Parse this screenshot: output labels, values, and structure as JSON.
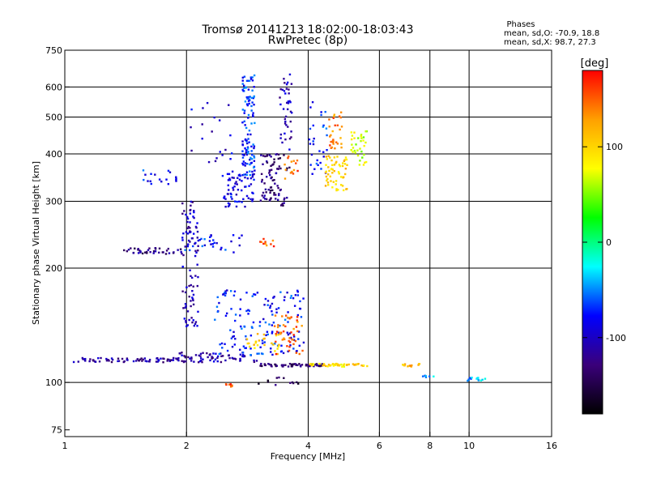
{
  "chart_data": {
    "type": "scatter",
    "title": "Tromsø 20141213 18:02:00-18:03:43",
    "subtitle": "RwPretec (8p)",
    "xlabel": "Frequency [MHz]",
    "ylabel": "Stationary phase Virtual Height [km]",
    "x_scale": "log",
    "y_scale": "log",
    "xlim": [
      1,
      16
    ],
    "ylim": [
      72,
      750
    ],
    "x_ticks": [
      1,
      2,
      4,
      6,
      8,
      10,
      16
    ],
    "y_ticks": [
      75,
      100,
      200,
      300,
      400,
      500,
      600,
      750
    ],
    "x_gridlines": [
      2,
      4,
      6,
      8,
      10
    ],
    "y_gridlines": [
      100,
      200,
      300,
      400,
      500,
      600
    ],
    "grid": true,
    "stats": {
      "title": "Phases",
      "line_o": "mean, sd,O: -70.9, 18.8",
      "line_x": "mean, sd,X:  98.7, 27.3"
    },
    "colorbar": {
      "unit": "[deg]",
      "range": [
        -180,
        180
      ],
      "ticks": [
        100,
        0,
        -100
      ],
      "colors": [
        "#ff0000",
        "#ffa000",
        "#ffff00",
        "#00ff00",
        "#00ffff",
        "#0000ff",
        "#3a007a",
        "#000000"
      ]
    },
    "clusters": [
      {
        "f": [
          1.05,
          1.9
        ],
        "h": [
          113,
          116
        ],
        "n": 70,
        "phase": -115
      },
      {
        "f": [
          1.9,
          3.0
        ],
        "h": [
          113,
          120
        ],
        "n": 70,
        "phase": -110
      },
      {
        "f": [
          3.0,
          4.4
        ],
        "h": [
          110,
          112
        ],
        "n": 60,
        "phase": -135
      },
      {
        "f": [
          4.0,
          5.0
        ],
        "h": [
          110,
          112
        ],
        "n": 35,
        "phase": 95
      },
      {
        "f": [
          5.0,
          5.6
        ],
        "h": [
          110,
          112
        ],
        "n": 12,
        "phase": 105
      },
      {
        "f": [
          6.8,
          7.6
        ],
        "h": [
          110,
          112
        ],
        "n": 12,
        "phase": 120
      },
      {
        "f": [
          7.6,
          8.2
        ],
        "h": [
          103,
          105
        ],
        "n": 6,
        "phase": -45
      },
      {
        "f": [
          9.6,
          11.0
        ],
        "h": [
          101,
          103
        ],
        "n": 14,
        "phase": -45
      },
      {
        "f": [
          2.35,
          3.9
        ],
        "h": [
          118,
          175
        ],
        "n": 150,
        "phase": -75
      },
      {
        "f": [
          2.8,
          3.4
        ],
        "h": [
          118,
          135
        ],
        "n": 25,
        "phase": 105
      },
      {
        "f": [
          3.3,
          3.9
        ],
        "h": [
          118,
          150
        ],
        "n": 45,
        "phase": 150
      },
      {
        "f": [
          1.95,
          2.15
        ],
        "h": [
          140,
          300
        ],
        "n": 90,
        "phase": -105
      },
      {
        "f": [
          1.4,
          1.95
        ],
        "h": [
          218,
          226
        ],
        "n": 40,
        "phase": -125
      },
      {
        "f": [
          1.95,
          2.8
        ],
        "h": [
          220,
          245
        ],
        "n": 30,
        "phase": -75
      },
      {
        "f": [
          1.55,
          1.9
        ],
        "h": [
          332,
          362
        ],
        "n": 18,
        "phase": -75
      },
      {
        "f": [
          2.0,
          2.6
        ],
        "h": [
          380,
          560
        ],
        "n": 20,
        "phase": -95
      },
      {
        "f": [
          2.45,
          2.95
        ],
        "h": [
          290,
          360
        ],
        "n": 70,
        "phase": -90
      },
      {
        "f": [
          2.75,
          2.95
        ],
        "h": [
          350,
          650
        ],
        "n": 110,
        "phase": -70
      },
      {
        "f": [
          3.05,
          3.4
        ],
        "h": [
          300,
          400
        ],
        "n": 55,
        "phase": -125
      },
      {
        "f": [
          3.4,
          3.65
        ],
        "h": [
          400,
          650
        ],
        "n": 40,
        "phase": -105
      },
      {
        "f": [
          3.2,
          3.6
        ],
        "h": [
          290,
          400
        ],
        "n": 30,
        "phase": -135
      },
      {
        "f": [
          3.5,
          3.9
        ],
        "h": [
          340,
          400
        ],
        "n": 15,
        "phase": 150
      },
      {
        "f": [
          4.0,
          4.5
        ],
        "h": [
          350,
          550
        ],
        "n": 30,
        "phase": -70
      },
      {
        "f": [
          4.4,
          5.0
        ],
        "h": [
          320,
          400
        ],
        "n": 60,
        "phase": 105
      },
      {
        "f": [
          4.5,
          4.9
        ],
        "h": [
          400,
          520
        ],
        "n": 30,
        "phase": 140
      },
      {
        "f": [
          5.1,
          5.6
        ],
        "h": [
          370,
          460
        ],
        "n": 35,
        "phase": 70
      },
      {
        "f": [
          3.0,
          3.3
        ],
        "h": [
          228,
          240
        ],
        "n": 10,
        "phase": 150
      },
      {
        "f": [
          2.5,
          2.6
        ],
        "h": [
          97,
          99
        ],
        "n": 8,
        "phase": 155
      },
      {
        "f": [
          3.0,
          3.8
        ],
        "h": [
          98,
          104
        ],
        "n": 12,
        "phase": -145
      }
    ]
  }
}
